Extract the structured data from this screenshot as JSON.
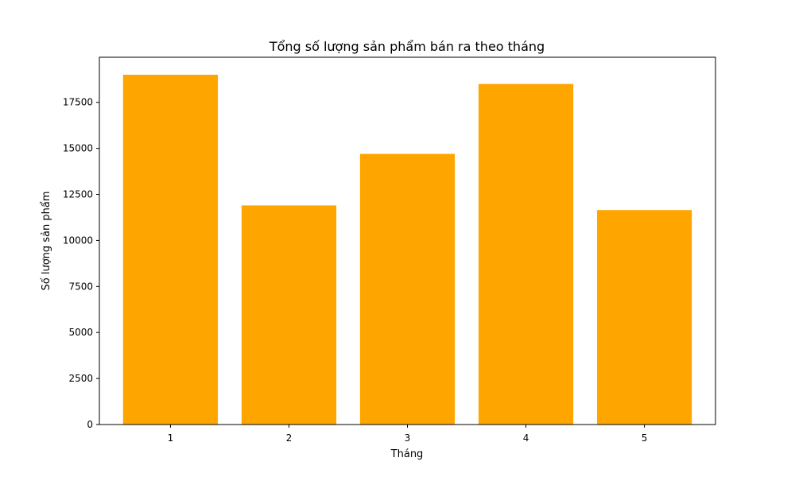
{
  "chart_data": {
    "type": "bar",
    "title": "Tổng số lượng sản phẩm bán ra theo tháng",
    "xlabel": "Tháng",
    "ylabel": "Số lượng sản phẩm",
    "categories": [
      "1",
      "2",
      "3",
      "4",
      "5"
    ],
    "values": [
      19000,
      11900,
      14700,
      18500,
      11650
    ],
    "ylim": [
      0,
      19950
    ],
    "yticks": [
      0,
      2500,
      5000,
      7500,
      10000,
      12500,
      15000,
      17500
    ],
    "grid": false,
    "legend": "none",
    "bar_color": "#ffa500"
  }
}
